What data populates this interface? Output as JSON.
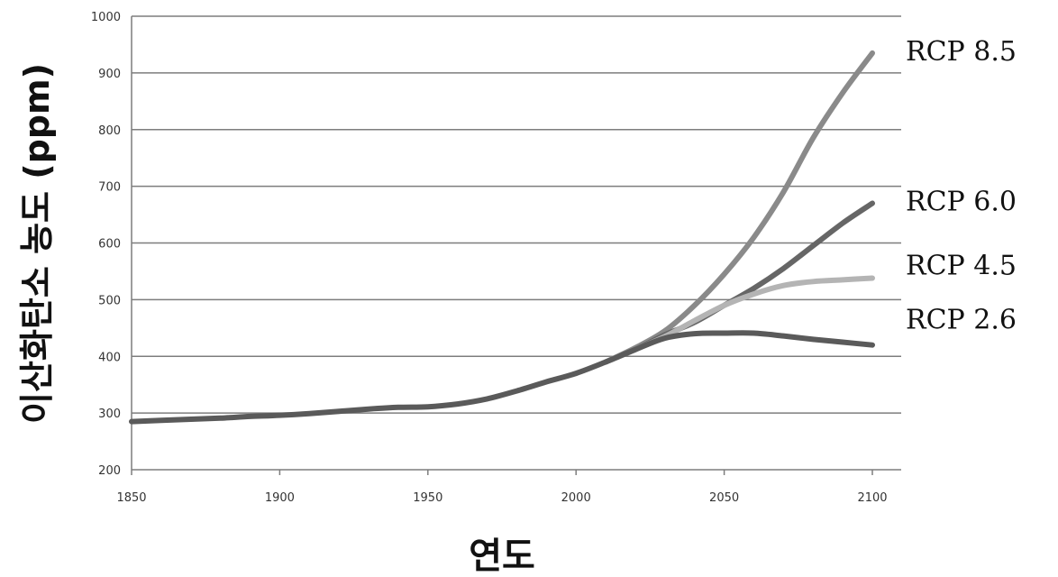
{
  "chart_data": {
    "type": "line",
    "xlabel": "연도",
    "ylabel": "이산화탄소 농도 (ppm)",
    "xlim": [
      1850,
      2100
    ],
    "ylim": [
      200,
      1000
    ],
    "xticks": [
      1850,
      1900,
      1950,
      2000,
      2050,
      2100
    ],
    "yticks": [
      200,
      300,
      400,
      500,
      600,
      700,
      800,
      900,
      1000
    ],
    "grid": "horizontal",
    "series": [
      {
        "name": "RCP 8.5",
        "color": "#8a8a8a",
        "x": [
          2010,
          2020,
          2030,
          2040,
          2050,
          2060,
          2070,
          2080,
          2090,
          2100
        ],
        "y": [
          390,
          415,
          445,
          490,
          545,
          610,
          690,
          785,
          865,
          935
        ]
      },
      {
        "name": "RCP 6.0",
        "color": "#666666",
        "x": [
          2010,
          2020,
          2030,
          2040,
          2050,
          2060,
          2070,
          2080,
          2090,
          2100
        ],
        "y": [
          390,
          412,
          438,
          460,
          490,
          520,
          555,
          595,
          635,
          670
        ]
      },
      {
        "name": "RCP 4.5",
        "color": "#b4b4b4",
        "x": [
          2010,
          2020,
          2030,
          2040,
          2050,
          2060,
          2070,
          2080,
          2090,
          2100
        ],
        "y": [
          390,
          412,
          435,
          463,
          490,
          510,
          525,
          532,
          535,
          538
        ]
      },
      {
        "name": "RCP 2.6",
        "color": "#5a5a5a",
        "x": [
          1850,
          1860,
          1870,
          1880,
          1890,
          1900,
          1910,
          1920,
          1930,
          1940,
          1950,
          1960,
          1970,
          1980,
          1990,
          2000,
          2010,
          2020,
          2030,
          2040,
          2050,
          2060,
          2070,
          2080,
          2090,
          2100
        ],
        "y": [
          285,
          287,
          289,
          291,
          294,
          296,
          299,
          303,
          307,
          310,
          311,
          316,
          325,
          339,
          355,
          370,
          390,
          412,
          432,
          440,
          441,
          441,
          436,
          430,
          425,
          420
        ]
      }
    ]
  }
}
